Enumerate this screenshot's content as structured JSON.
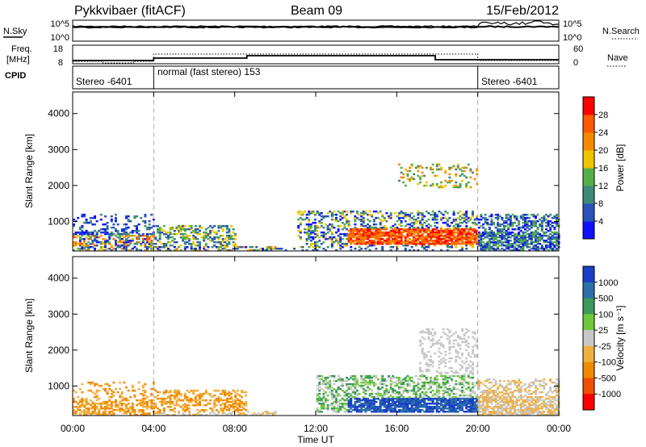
{
  "header": {
    "station": "Pykkvibaer (fitACF)",
    "beam": "Beam 09",
    "date": "15/Feb/2012"
  },
  "summary_panels": {
    "nsky_label": "N.Sky",
    "nsky_ticks": [
      "10^5",
      "10^0"
    ],
    "nsearch_label": "N.Search",
    "nsearch_ticks": [
      "10^5",
      "10^0"
    ],
    "freq_label_line1": "Freq.",
    "freq_label_line2": "[MHz]",
    "freq_ticks": [
      "18",
      "8"
    ],
    "nave_label": "Nave",
    "nave_ticks": [
      "60",
      "0"
    ],
    "cpid_label": "CPID",
    "cpid_segments": [
      {
        "label": "Stereo -6401",
        "start": 0,
        "end": 4
      },
      {
        "label": "normal (fast stereo) 153",
        "start": 4,
        "end": 20
      },
      {
        "label": "Stereo -6401",
        "start": 20,
        "end": 24
      }
    ]
  },
  "chart_data": [
    {
      "type": "heatmap",
      "name": "power",
      "ylabel": "Slant Range [km]",
      "ylim": [
        180,
        4600
      ],
      "yticks": [
        "1000",
        "2000",
        "3000",
        "4000"
      ],
      "ytick_values": [
        1000,
        2000,
        3000,
        4000
      ],
      "colorbar_label": "Power [dB]",
      "colorbar_ticks": [
        "4",
        "8",
        "12",
        "16",
        "20",
        "24",
        "28"
      ],
      "colorbar_colors": [
        "#1010ff",
        "#2a52b8",
        "#3d8a7a",
        "#56b04a",
        "#f0c400",
        "#f58a00",
        "#ff5a00",
        "#ff0000"
      ],
      "xlim": [
        0,
        24
      ],
      "mode_change_lines_hours": [
        4,
        20
      ]
    },
    {
      "type": "heatmap",
      "name": "velocity",
      "ylabel": "Slant Range [km]",
      "ylim": [
        180,
        4600
      ],
      "yticks": [
        "1000",
        "2000",
        "3000",
        "4000"
      ],
      "ytick_values": [
        1000,
        2000,
        3000,
        4000
      ],
      "colorbar_label": "Velocity [m s⁻¹]",
      "colorbar_ticks": [
        "1000",
        "500",
        "100",
        "25",
        "-25",
        "-100",
        "-500",
        "-1000"
      ],
      "colorbar_colors": [
        "#1a3ec8",
        "#2b6ea8",
        "#3d9a5a",
        "#6ec83c",
        "#c8c8c8",
        "#f0b040",
        "#f08a00",
        "#f05000",
        "#ff0000"
      ],
      "xlim": [
        0,
        24
      ],
      "mode_change_lines_hours": [
        4,
        20
      ]
    }
  ],
  "x_axis": {
    "label": "Time UT",
    "ticks": [
      "00:00",
      "04:00",
      "08:00",
      "12:00",
      "16:00",
      "20:00",
      "00:00"
    ],
    "tick_hours": [
      0,
      4,
      8,
      12,
      16,
      20,
      24
    ]
  }
}
